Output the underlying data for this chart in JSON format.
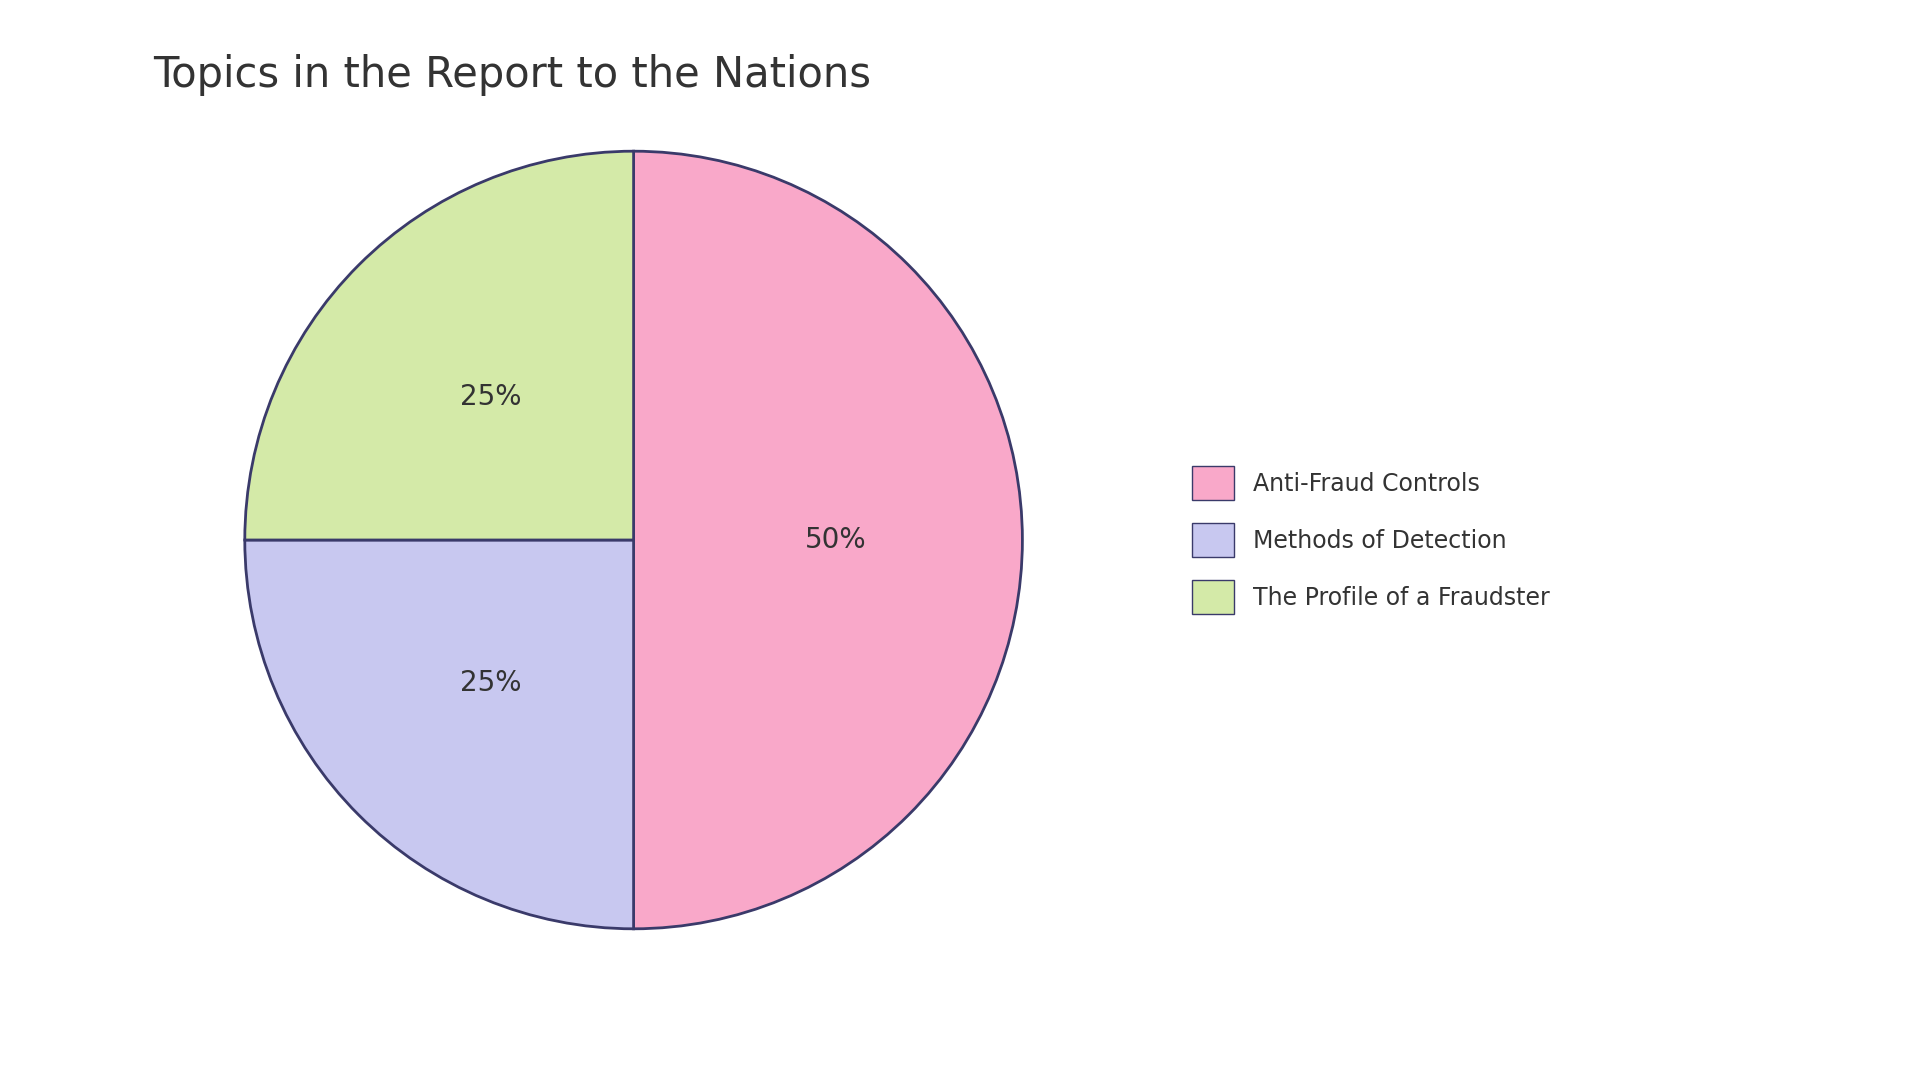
{
  "title": "Topics in the Report to the Nations",
  "slices": [
    50,
    25,
    25
  ],
  "labels": [
    "Anti-Fraud Controls",
    "Methods of Detection",
    "The Profile of a Fraudster"
  ],
  "colors": [
    "#F9A8C9",
    "#C8C8F0",
    "#D4EAA8"
  ],
  "edge_color": "#3A3A6A",
  "edge_width": 2.0,
  "start_angle": 90,
  "pct_labels": [
    "50%",
    "25%",
    "25%"
  ],
  "pct_fontsize": 20,
  "title_fontsize": 30,
  "legend_fontsize": 17,
  "background_color": "#FFFFFF",
  "text_color": "#333333"
}
